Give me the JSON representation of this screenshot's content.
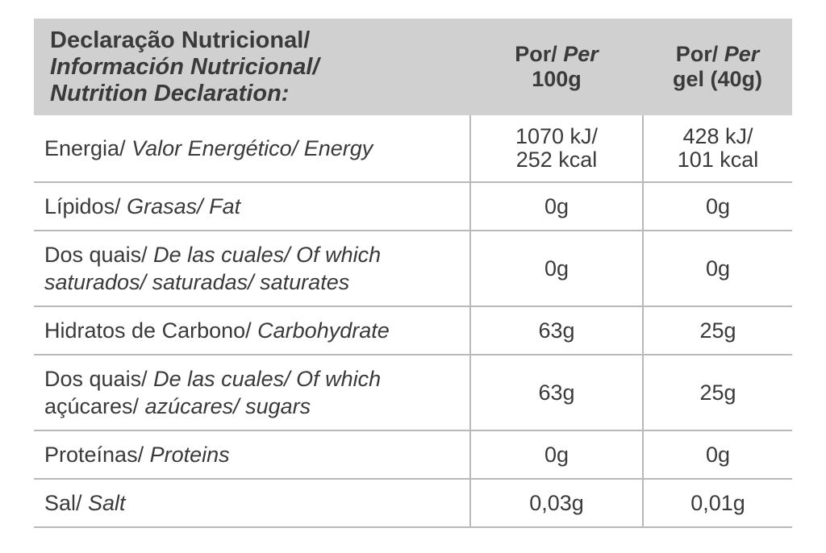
{
  "header": {
    "title_pt": "Declaração Nutricional/",
    "title_es": "Información Nutricional/",
    "title_en": "Nutrition Declaration:",
    "per100g": {
      "por": "Por/",
      "per": "Per",
      "amount": "100g"
    },
    "pergel": {
      "por": "Por/",
      "per": "Per",
      "amount": "gel (40g)"
    }
  },
  "rows": [
    {
      "name": "energy",
      "segments": [
        {
          "text": "Energia/ ",
          "italic": false
        },
        {
          "text": "Valor Energético/ Energy",
          "italic": true
        }
      ],
      "per100g_lines": [
        "1070 kJ/",
        "252 kcal"
      ],
      "pergel_lines": [
        "428 kJ/",
        "101 kcal"
      ]
    },
    {
      "name": "fat",
      "segments": [
        {
          "text": "Lípidos/ ",
          "italic": false
        },
        {
          "text": "Grasas/ Fat",
          "italic": true
        }
      ],
      "per100g_lines": [
        "0g"
      ],
      "pergel_lines": [
        "0g"
      ]
    },
    {
      "name": "saturates",
      "segments": [
        {
          "text": "Dos quais/ ",
          "italic": false
        },
        {
          "text": "De las cuales/ Of which",
          "italic": true
        },
        {
          "text": "saturados/ saturadas/ saturates",
          "italic": true,
          "break_before": true
        }
      ],
      "per100g_lines": [
        "0g"
      ],
      "pergel_lines": [
        "0g"
      ]
    },
    {
      "name": "carbohydrate",
      "segments": [
        {
          "text": "Hidratos de Carbono/ ",
          "italic": false
        },
        {
          "text": "Carbohydrate",
          "italic": true
        }
      ],
      "per100g_lines": [
        "63g"
      ],
      "pergel_lines": [
        "25g"
      ]
    },
    {
      "name": "sugars",
      "segments": [
        {
          "text": "Dos quais/ ",
          "italic": false
        },
        {
          "text": "De las cuales/ Of which",
          "italic": true
        },
        {
          "text": "açúcares/ ",
          "italic": false,
          "break_before": true
        },
        {
          "text": "azúcares/ sugars",
          "italic": true
        }
      ],
      "per100g_lines": [
        "63g"
      ],
      "pergel_lines": [
        "25g"
      ]
    },
    {
      "name": "proteins",
      "segments": [
        {
          "text": "Proteínas/ ",
          "italic": false
        },
        {
          "text": "Proteins",
          "italic": true
        }
      ],
      "per100g_lines": [
        "0g"
      ],
      "pergel_lines": [
        "0g"
      ]
    },
    {
      "name": "salt",
      "segments": [
        {
          "text": "Sal/ ",
          "italic": false
        },
        {
          "text": "Salt",
          "italic": true
        }
      ],
      "per100g_lines": [
        "0,03g"
      ],
      "pergel_lines": [
        "0,01g"
      ]
    }
  ],
  "colors": {
    "page_bg": "#ffffff",
    "header_bg": "#d0d0d0",
    "border": "#b9b9b9",
    "text": "#3a3a3a"
  }
}
